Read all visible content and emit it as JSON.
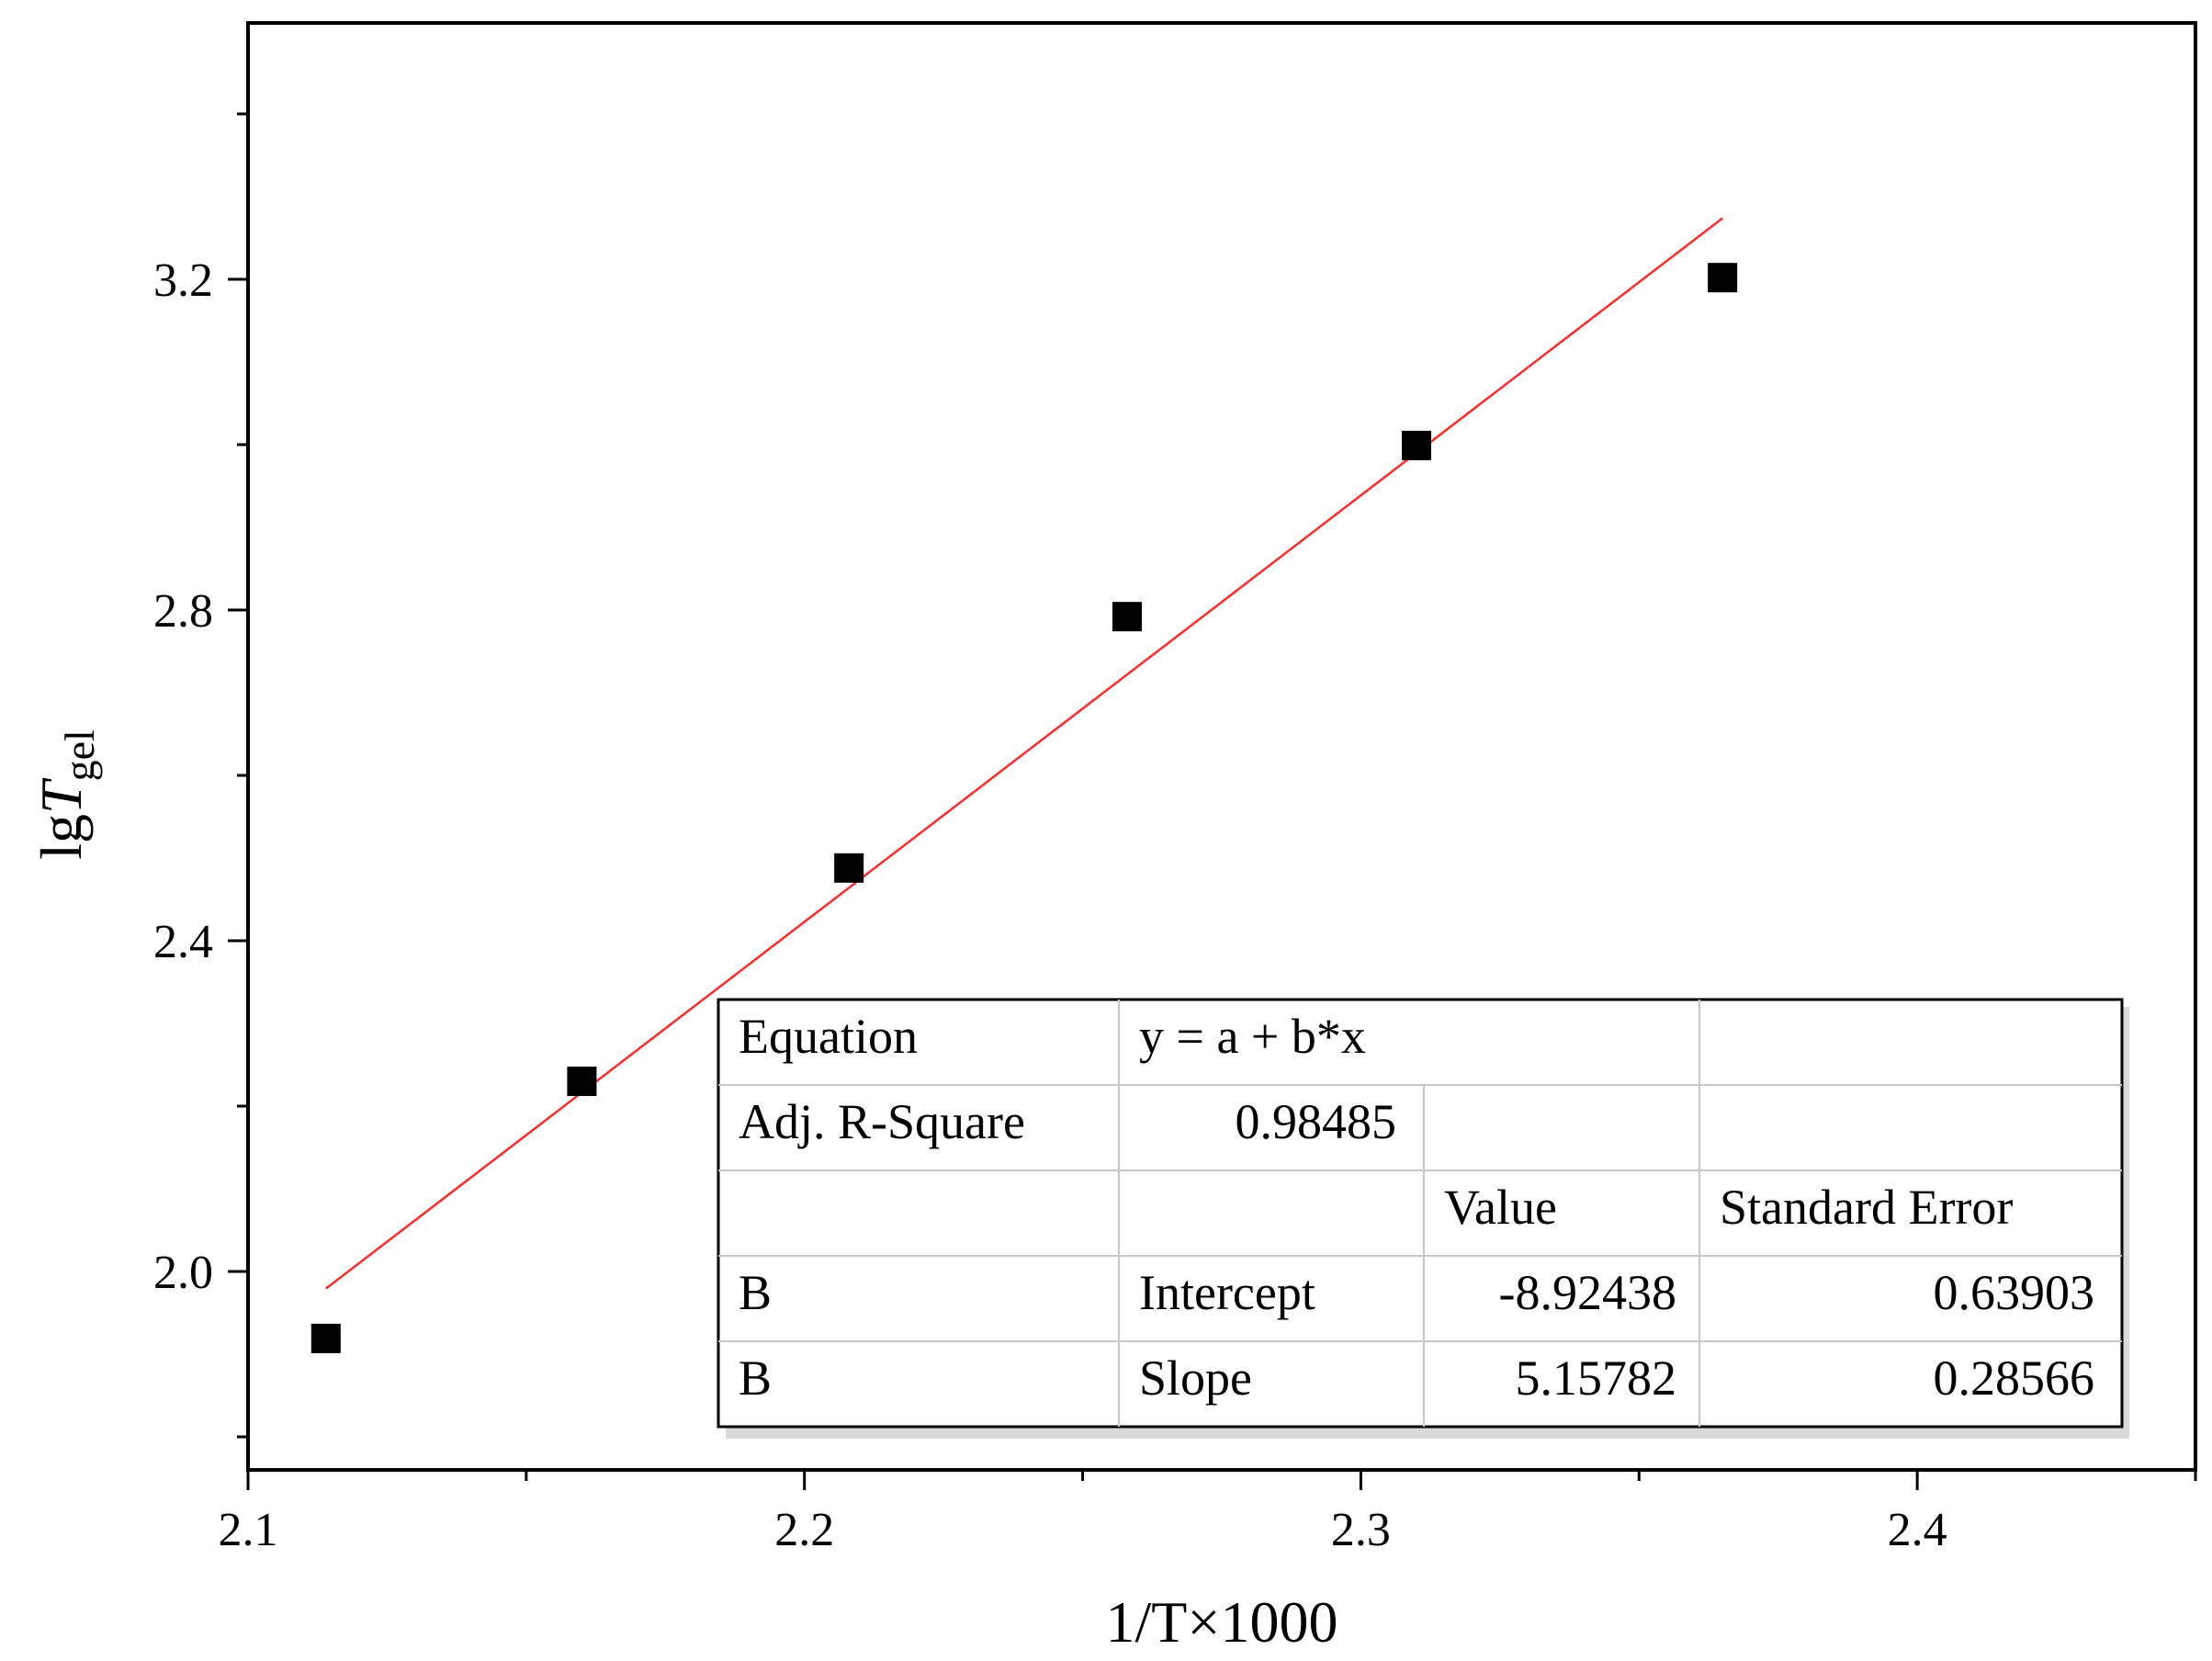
{
  "chart_data": {
    "type": "scatter",
    "xlabel": "1/T×1000",
    "ylabel": {
      "main": "lg",
      "italic": "T",
      "subscript": "gel"
    },
    "xlim": [
      2.1,
      2.45
    ],
    "ylim": [
      1.76,
      3.51
    ],
    "x_ticks": [
      "2.1",
      "2.2",
      "2.3",
      "2.4"
    ],
    "y_ticks": [
      "2.0",
      "2.4",
      "2.8",
      "3.2"
    ],
    "grid": false,
    "points": [
      {
        "x": 2.114,
        "y": 1.919
      },
      {
        "x": 2.16,
        "y": 2.23
      },
      {
        "x": 2.208,
        "y": 2.488
      },
      {
        "x": 2.258,
        "y": 2.792
      },
      {
        "x": 2.31,
        "y": 2.999
      },
      {
        "x": 2.365,
        "y": 3.202
      }
    ],
    "marker_color": "#000000",
    "fit_line": {
      "intercept": -8.92438,
      "slope": 5.15782,
      "x_start": 2.114,
      "x_end": 2.365,
      "color": "#ff2a2a"
    },
    "fit_table": {
      "equation_label": "Equation",
      "equation_value": "y = a + b*x",
      "r2_label": "Adj. R-Square",
      "r2_value": "0.98485",
      "value_header": "Value",
      "stderr_header": "Standard Error",
      "rows": [
        {
          "series": "B",
          "param": "Intercept",
          "value": "-8.92438",
          "stderr": "0.63903"
        },
        {
          "series": "B",
          "param": "Slope",
          "value": "5.15782",
          "stderr": "0.28566"
        }
      ]
    }
  }
}
